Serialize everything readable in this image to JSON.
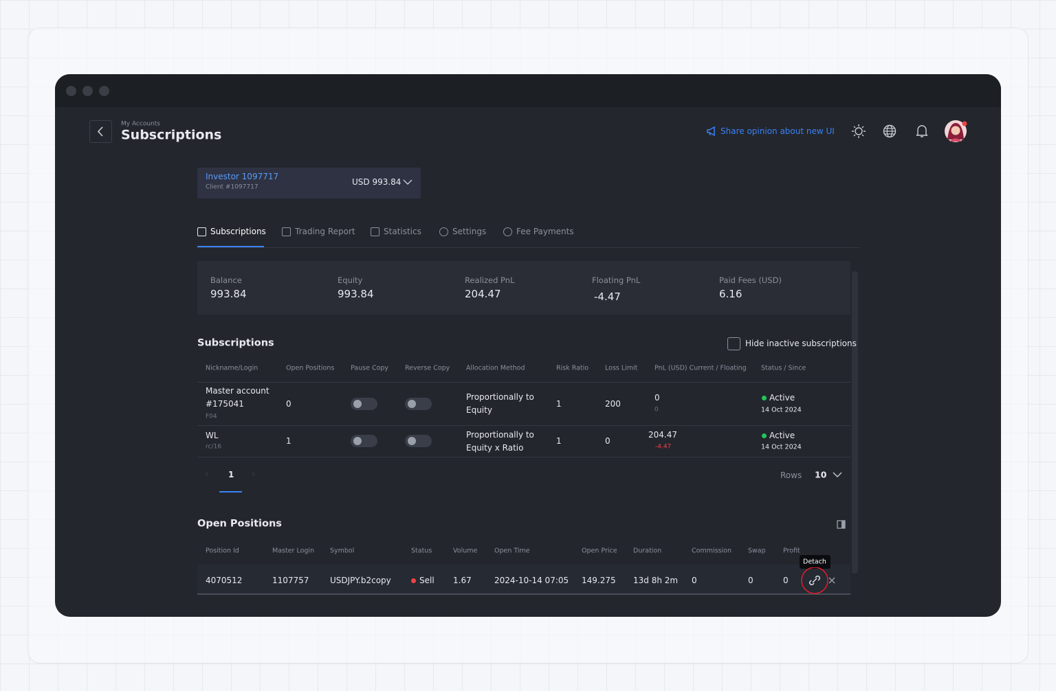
{
  "header": {
    "breadcrumb": "My Accounts",
    "title": "Subscriptions",
    "feedback": "Share opinion about new UI"
  },
  "account": {
    "name": "Investor 1097717",
    "client": "Client #1097717",
    "balance": "USD 993.84"
  },
  "tabs": [
    "Subscriptions",
    "Trading Report",
    "Statistics",
    "Settings",
    "Fee Payments"
  ],
  "stats": [
    {
      "label": "Balance",
      "value": "993.84"
    },
    {
      "label": "Equity",
      "value": "993.84"
    },
    {
      "label": "Realized PnL",
      "value": "204.47"
    },
    {
      "label": "Floating PnL",
      "value": "-4.47"
    },
    {
      "label": "Paid Fees (USD)",
      "value": "6.16"
    }
  ],
  "subscriptions": {
    "title": "Subscriptions",
    "filter": "Hide inactive subscriptions",
    "columns": [
      "Nickname/Login",
      "Open Positions",
      "Pause Copy",
      "Reverse Copy",
      "Allocation Method",
      "Risk Ratio",
      "Loss Limit",
      "PnL (USD) Current / Floating",
      "Status / Since"
    ],
    "rows": [
      {
        "name": [
          "Master account",
          "#175041"
        ],
        "sub": "F04",
        "open": "0",
        "allocation": [
          "Proportionally to",
          "Equity"
        ],
        "risk": "1",
        "loss": "200",
        "pnl": "0",
        "floating": "0",
        "status": "Active",
        "since": "14 Oct 2024"
      },
      {
        "name": [
          "WL"
        ],
        "sub": "rc/16",
        "open": "1",
        "allocation": [
          "Proportionally to",
          "Equity x Ratio"
        ],
        "risk": "1",
        "loss": "0",
        "pnl": "204.47",
        "floating": "-4.47",
        "status": "Active",
        "since": "14 Oct 2024"
      }
    ]
  },
  "pagination": {
    "page": "1",
    "rows_label": "Rows",
    "rows": "10"
  },
  "positions": {
    "title": "Open Positions",
    "columns": [
      "Position Id",
      "Master Login",
      "Symbol",
      "Status",
      "Volume",
      "Open Time",
      "Open Price",
      "Duration",
      "Commission",
      "Swap",
      "Profit"
    ],
    "rows": [
      [
        "4070512",
        "1107757",
        "USDJPY.b2copy",
        "Sell",
        "1.67",
        "2024-10-14 07:05",
        "149.275",
        "13d 8h 2m",
        "0",
        "0",
        "0"
      ]
    ],
    "tooltip": "Detach"
  }
}
